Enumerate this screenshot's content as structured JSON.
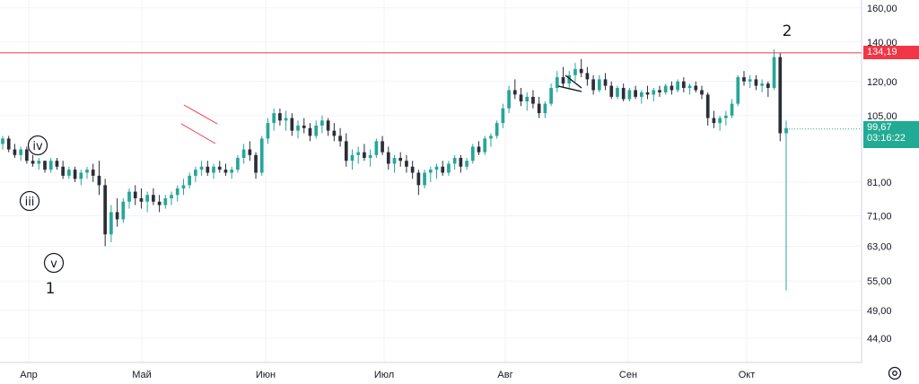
{
  "chart_data": {
    "type": "candlestick",
    "x_labels": [
      "Апр",
      "Май",
      "Июн",
      "Июл",
      "Авг",
      "Сен",
      "Окт"
    ],
    "y_ticks": [
      "160,00",
      "140,00",
      "120,00",
      "105,00",
      "81,00",
      "71,00",
      "63,00",
      "55,00",
      "49,00",
      "44,00"
    ],
    "y_scale": "log",
    "y_range": [
      40,
      165
    ],
    "grid": true,
    "series": [
      {
        "values": [
          [
            94,
            97,
            92,
            96
          ],
          [
            96,
            97,
            91,
            92
          ],
          [
            92,
            94,
            89,
            90
          ],
          [
            90,
            93,
            88,
            92
          ],
          [
            92,
            93,
            87,
            88
          ],
          [
            88,
            90,
            86,
            87
          ],
          [
            87,
            89,
            85,
            88
          ],
          [
            88,
            88,
            84,
            85
          ],
          [
            85,
            89,
            84,
            88
          ],
          [
            88,
            89,
            85,
            86
          ],
          [
            86,
            88,
            82,
            83
          ],
          [
            83,
            86,
            82,
            85
          ],
          [
            85,
            86,
            81,
            82
          ],
          [
            82,
            85,
            80,
            84
          ],
          [
            84,
            86,
            82,
            85
          ],
          [
            85,
            87,
            81,
            83
          ],
          [
            83,
            88,
            77,
            80
          ],
          [
            80,
            82,
            63,
            66
          ],
          [
            66,
            74,
            64,
            72
          ],
          [
            72,
            76,
            68,
            70
          ],
          [
            70,
            76,
            69,
            75
          ],
          [
            75,
            79,
            73,
            78
          ],
          [
            78,
            80,
            74,
            76
          ],
          [
            76,
            79,
            73,
            75
          ],
          [
            75,
            78,
            72,
            77
          ],
          [
            77,
            79,
            74,
            75
          ],
          [
            75,
            77,
            72,
            74
          ],
          [
            74,
            77,
            73,
            76
          ],
          [
            76,
            78,
            74,
            77
          ],
          [
            77,
            80,
            75,
            79
          ],
          [
            79,
            82,
            77,
            80
          ],
          [
            80,
            84,
            79,
            83
          ],
          [
            83,
            86,
            81,
            85
          ],
          [
            85,
            88,
            83,
            86
          ],
          [
            86,
            88,
            83,
            84
          ],
          [
            84,
            87,
            82,
            86
          ],
          [
            86,
            88,
            84,
            85
          ],
          [
            85,
            87,
            83,
            84
          ],
          [
            84,
            86,
            82,
            85
          ],
          [
            85,
            90,
            84,
            89
          ],
          [
            89,
            94,
            87,
            92
          ],
          [
            92,
            95,
            88,
            90
          ],
          [
            90,
            91,
            82,
            84
          ],
          [
            84,
            97,
            83,
            96
          ],
          [
            96,
            104,
            94,
            102
          ],
          [
            102,
            108,
            99,
            106
          ],
          [
            106,
            108,
            101,
            103
          ],
          [
            103,
            107,
            99,
            104
          ],
          [
            104,
            106,
            97,
            99
          ],
          [
            99,
            103,
            96,
            101
          ],
          [
            101,
            104,
            98,
            100
          ],
          [
            100,
            102,
            95,
            97
          ],
          [
            97,
            103,
            96,
            101
          ],
          [
            101,
            105,
            98,
            103
          ],
          [
            103,
            104,
            97,
            99
          ],
          [
            99,
            102,
            95,
            97
          ],
          [
            97,
            100,
            93,
            95
          ],
          [
            95,
            98,
            86,
            88
          ],
          [
            88,
            92,
            85,
            90
          ],
          [
            90,
            93,
            87,
            91
          ],
          [
            91,
            94,
            88,
            89
          ],
          [
            89,
            92,
            86,
            90
          ],
          [
            90,
            96,
            89,
            95
          ],
          [
            95,
            97,
            90,
            91
          ],
          [
            91,
            93,
            85,
            87
          ],
          [
            87,
            90,
            84,
            89
          ],
          [
            89,
            91,
            86,
            88
          ],
          [
            88,
            90,
            84,
            86
          ],
          [
            86,
            88,
            82,
            84
          ],
          [
            84,
            85,
            77,
            80
          ],
          [
            80,
            85,
            79,
            84
          ],
          [
            84,
            86,
            81,
            85
          ],
          [
            85,
            87,
            82,
            86
          ],
          [
            86,
            88,
            83,
            84
          ],
          [
            84,
            88,
            83,
            87
          ],
          [
            87,
            90,
            85,
            89
          ],
          [
            89,
            90,
            84,
            86
          ],
          [
            86,
            89,
            85,
            88
          ],
          [
            88,
            94,
            87,
            93
          ],
          [
            93,
            95,
            90,
            91
          ],
          [
            91,
            97,
            90,
            96
          ],
          [
            96,
            98,
            93,
            97
          ],
          [
            97,
            103,
            96,
            102
          ],
          [
            102,
            110,
            100,
            108
          ],
          [
            108,
            118,
            106,
            116
          ],
          [
            116,
            121,
            112,
            114
          ],
          [
            114,
            117,
            109,
            111
          ],
          [
            111,
            115,
            107,
            113
          ],
          [
            113,
            116,
            108,
            110
          ],
          [
            110,
            113,
            104,
            106
          ],
          [
            106,
            111,
            104,
            110
          ],
          [
            110,
            119,
            109,
            117
          ],
          [
            117,
            125,
            115,
            122
          ],
          [
            122,
            127,
            117,
            119
          ],
          [
            119,
            125,
            117,
            123
          ],
          [
            123,
            129,
            120,
            126
          ],
          [
            126,
            131,
            122,
            124
          ],
          [
            124,
            127,
            118,
            121
          ],
          [
            121,
            123,
            114,
            116
          ],
          [
            116,
            123,
            115,
            121
          ],
          [
            121,
            124,
            116,
            118
          ],
          [
            118,
            120,
            112,
            113
          ],
          [
            113,
            118,
            112,
            117
          ],
          [
            117,
            119,
            111,
            112
          ],
          [
            112,
            117,
            111,
            116
          ],
          [
            116,
            118,
            112,
            113
          ],
          [
            113,
            116,
            110,
            115
          ],
          [
            115,
            118,
            112,
            114
          ],
          [
            114,
            117,
            111,
            116
          ],
          [
            116,
            118,
            113,
            115
          ],
          [
            115,
            119,
            114,
            118
          ],
          [
            118,
            120,
            114,
            116
          ],
          [
            116,
            121,
            115,
            120
          ],
          [
            120,
            122,
            115,
            117
          ],
          [
            117,
            119,
            114,
            118
          ],
          [
            118,
            120,
            115,
            116
          ],
          [
            116,
            118,
            112,
            114
          ],
          [
            114,
            115,
            101,
            104
          ],
          [
            104,
            107,
            100,
            102
          ],
          [
            102,
            105,
            99,
            104
          ],
          [
            104,
            107,
            101,
            105
          ],
          [
            105,
            112,
            104,
            110
          ],
          [
            110,
            123,
            109,
            122
          ],
          [
            122,
            125,
            118,
            120
          ],
          [
            120,
            123,
            117,
            121
          ],
          [
            121,
            123,
            116,
            118
          ],
          [
            118,
            121,
            115,
            119
          ],
          [
            119,
            120,
            113,
            117
          ],
          [
            117,
            136,
            116,
            132
          ],
          [
            132,
            134,
            95,
            98
          ],
          [
            98,
            103,
            53,
            100
          ]
        ]
      }
    ],
    "horizontal_line": {
      "value": 134.19,
      "label": "134,19"
    },
    "last_price": {
      "value": 99.67,
      "label": "99,67",
      "countdown": "03:16:22"
    },
    "wave_labels": [
      "iv",
      "iii",
      "v",
      "1",
      "2"
    ],
    "colors": {
      "up": "#26a69a",
      "down": "#2a2e39",
      "line": "#f23645",
      "last": "#22ab94",
      "grid": "#f0f3fa",
      "text": "#131722"
    }
  }
}
